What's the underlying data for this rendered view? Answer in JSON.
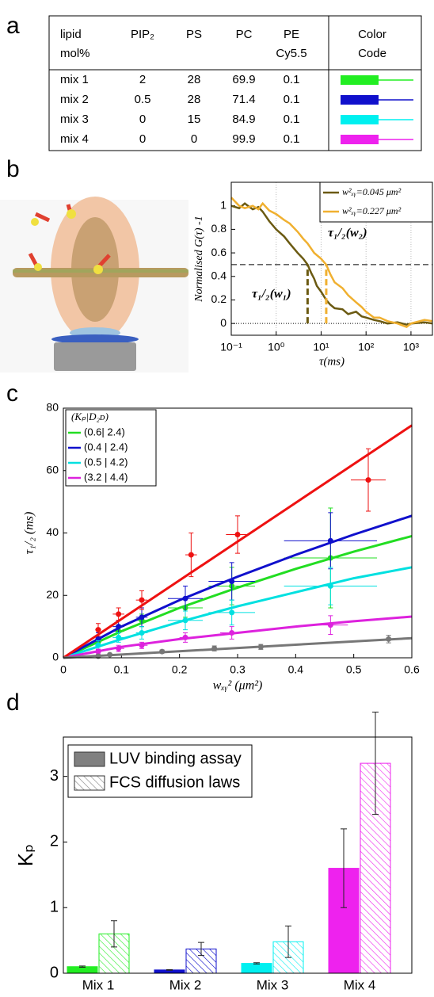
{
  "panel_labels": [
    "a",
    "b",
    "c",
    "d"
  ],
  "table": {
    "header": [
      [
        "lipid",
        "mol%"
      ],
      [
        "PIP₂"
      ],
      [
        "PS"
      ],
      [
        "PC"
      ],
      [
        "PE",
        "Cy5.5"
      ],
      [
        "Color",
        "Code"
      ]
    ],
    "rows": [
      [
        "mix 1",
        2,
        28,
        69.9,
        0.1
      ],
      [
        "mix 2",
        0.5,
        28,
        71.4,
        0.1
      ],
      [
        "mix 3",
        0,
        15,
        84.9,
        0.1
      ],
      [
        "mix 4",
        0,
        0,
        99.9,
        0.1
      ]
    ],
    "colors": [
      "#22ee22",
      "#1010cc",
      "#00f0f0",
      "#ee22ee"
    ]
  },
  "chart_data": [
    {
      "type": "line",
      "xlabel": "τ(ms)",
      "ylabel": "Normalised G(τ) -1",
      "log_x": true,
      "grid": true,
      "legend": "upper right",
      "xlim": [
        0.1,
        3000
      ],
      "ylim": [
        -0.1,
        1.2
      ],
      "xticks": [
        {
          "value": 0.1,
          "label": "10⁻¹"
        },
        {
          "value": 1,
          "label": "10⁰"
        },
        {
          "value": 10,
          "label": "10¹"
        },
        {
          "value": 100,
          "label": "10²"
        },
        {
          "value": 1000,
          "label": "10³"
        }
      ],
      "yticks": [
        0,
        0.2,
        0.4,
        0.6,
        0.8,
        1
      ],
      "hlines": [
        0.5,
        0
      ],
      "annotations": [
        {
          "text": "τ₁/₂(w₁)",
          "x": 5,
          "y": 0.5,
          "color": "#6b5a12"
        },
        {
          "text": "τ₁/₂(w₂)",
          "x": 13,
          "y": 0.5,
          "color": "#f0b030"
        }
      ],
      "series": [
        {
          "name": "w²ₓᵧ=0.045 μm²",
          "color": "#6b5a12",
          "x": [
            0.1,
            0.15,
            0.2,
            0.3,
            0.4,
            0.5,
            0.7,
            1,
            1.5,
            2,
            3,
            4,
            5,
            6,
            7,
            8,
            10,
            13,
            16,
            20,
            30,
            40,
            60,
            80,
            100,
            150,
            200,
            300,
            500,
            800,
            1000,
            2000,
            3000
          ],
          "values": [
            1.0,
            0.98,
            1.02,
            0.97,
            0.99,
            0.95,
            0.87,
            0.8,
            0.74,
            0.68,
            0.6,
            0.55,
            0.5,
            0.43,
            0.38,
            0.32,
            0.27,
            0.2,
            0.16,
            0.13,
            0.12,
            0.08,
            0.1,
            0.06,
            0.05,
            0.03,
            0.02,
            0.0,
            0.01,
            -0.01,
            0.0,
            0.01,
            0.0
          ]
        },
        {
          "name": "w²ₓᵧ=0.227 μm²",
          "color": "#f0b030",
          "x": [
            0.1,
            0.15,
            0.2,
            0.3,
            0.4,
            0.5,
            0.7,
            1,
            1.5,
            2,
            3,
            4,
            5,
            7,
            10,
            13,
            16,
            20,
            30,
            40,
            60,
            80,
            100,
            150,
            200,
            300,
            500,
            800,
            1000,
            2000,
            3000
          ],
          "values": [
            1.07,
            1.0,
            0.98,
            1.0,
            0.97,
            1.02,
            0.96,
            0.93,
            0.88,
            0.85,
            0.78,
            0.72,
            0.68,
            0.6,
            0.55,
            0.5,
            0.42,
            0.35,
            0.3,
            0.24,
            0.18,
            0.14,
            0.1,
            0.05,
            0.05,
            0.02,
            0.0,
            -0.03,
            0.0,
            0.03,
            0.02
          ]
        }
      ]
    },
    {
      "type": "scatter",
      "xlabel": "wₓᵧ² (μm²)",
      "ylabel": "τ₁/₂ (ms)",
      "legend_title": "(Kₚ|D₂ᴅ)",
      "legend": "upper left",
      "xlim": [
        0,
        0.6
      ],
      "ylim": [
        0,
        80
      ],
      "xticks": [
        0,
        0.1,
        0.2,
        0.3,
        0.4,
        0.5,
        0.6
      ],
      "yticks": [
        0,
        20,
        40,
        60,
        80
      ],
      "series": [
        {
          "name": "(0.6| 2.4)",
          "color": "#22dd22",
          "x": [
            0.06,
            0.095,
            0.135,
            0.21,
            0.29,
            0.46
          ],
          "values": [
            5,
            8.5,
            12,
            16,
            23,
            32
          ],
          "xerr": [
            0.005,
            0.01,
            0.01,
            0.03,
            0.04,
            0.08
          ],
          "yerr": [
            1.5,
            2,
            2,
            3,
            6,
            16
          ],
          "fit_x": [
            0,
            0.1,
            0.2,
            0.3,
            0.4,
            0.5,
            0.6
          ],
          "fit_y": [
            0,
            8.5,
            16,
            22.5,
            28.5,
            34,
            39
          ]
        },
        {
          "name": "(0.4 | 2.4)",
          "color": "#1010cc",
          "x": [
            0.06,
            0.095,
            0.135,
            0.21,
            0.29,
            0.46
          ],
          "values": [
            6,
            10,
            13,
            19,
            24.5,
            37.5
          ],
          "xerr": [
            0.005,
            0.01,
            0.01,
            0.03,
            0.04,
            0.08
          ],
          "yerr": [
            2,
            2,
            3,
            4,
            6,
            9
          ],
          "fit_x": [
            0,
            0.1,
            0.2,
            0.3,
            0.4,
            0.5,
            0.6
          ],
          "fit_y": [
            0,
            10,
            18.5,
            26,
            33,
            39.5,
            45.5
          ]
        },
        {
          "name": "(0.5 | 4.2)",
          "color": "#00e0e0",
          "x": [
            0.06,
            0.095,
            0.135,
            0.21,
            0.29,
            0.46
          ],
          "values": [
            4,
            6.5,
            8,
            12,
            14.5,
            23
          ],
          "xerr": [
            0.005,
            0.01,
            0.01,
            0.03,
            0.04,
            0.08
          ],
          "yerr": [
            1.5,
            1.5,
            2,
            3,
            4,
            6
          ],
          "fit_x": [
            0,
            0.1,
            0.2,
            0.3,
            0.4,
            0.5,
            0.6
          ],
          "fit_y": [
            0,
            6,
            11.5,
            16.5,
            21,
            25.5,
            29
          ]
        },
        {
          "name": "(3.2 | 4.4)",
          "color": "#dd22dd",
          "x": [
            0.06,
            0.095,
            0.135,
            0.21,
            0.29,
            0.46
          ],
          "values": [
            2,
            3,
            4,
            6.5,
            8,
            10.5
          ],
          "xerr": [
            0.005,
            0.01,
            0.01,
            0.01,
            0.02,
            0.03
          ],
          "yerr": [
            0.8,
            1,
            1,
            1.5,
            2,
            3
          ],
          "fit_x": [
            0,
            0.1,
            0.2,
            0.3,
            0.4,
            0.5,
            0.6
          ],
          "fit_y": [
            0,
            3.5,
            6,
            8,
            10,
            11.7,
            13.2
          ]
        },
        {
          "color": "#ee1111",
          "x": [
            0.06,
            0.095,
            0.135,
            0.22,
            0.3,
            0.525
          ],
          "values": [
            9,
            14,
            18.5,
            33,
            39.5,
            57
          ],
          "xerr": [
            0.005,
            0.01,
            0.01,
            0.01,
            0.02,
            0.03
          ],
          "yerr": [
            2,
            2,
            3,
            7,
            6,
            10
          ],
          "fit_x": [
            0,
            0.6
          ],
          "fit_y": [
            0,
            74.5
          ]
        },
        {
          "color": "#777777",
          "x": [
            0.06,
            0.08,
            0.17,
            0.26,
            0.34,
            0.56
          ],
          "values": [
            0.5,
            1,
            2,
            3,
            3.5,
            6
          ],
          "yerr": [
            0.3,
            0.3,
            0.5,
            0.8,
            0.8,
            1.2
          ],
          "fit_x": [
            0,
            0.6
          ],
          "fit_y": [
            0,
            6.3
          ]
        }
      ]
    },
    {
      "type": "bar",
      "ylabel": "Kₚ",
      "legend": "upper left",
      "categories": [
        "Mix 1",
        "Mix 2",
        "Mix 3",
        "Mix 4"
      ],
      "bar_colors": [
        "#22ee22",
        "#1010cc",
        "#00f0f0",
        "#ee22ee"
      ],
      "ylim": [
        0,
        3.6
      ],
      "yticks": [
        0,
        1,
        2,
        3
      ],
      "series": [
        {
          "name": "LUV binding assay",
          "color": "#808080",
          "hatch": false,
          "values": [
            0.1,
            0.05,
            0.15,
            1.6
          ],
          "errors": [
            0.01,
            0.005,
            0.01,
            0.6
          ]
        },
        {
          "name": "FCS diffusion laws",
          "color": "#808080",
          "hatch": true,
          "values": [
            0.6,
            0.37,
            0.48,
            3.2
          ],
          "errors": [
            0.2,
            0.1,
            0.24,
            0.78
          ]
        }
      ]
    }
  ]
}
